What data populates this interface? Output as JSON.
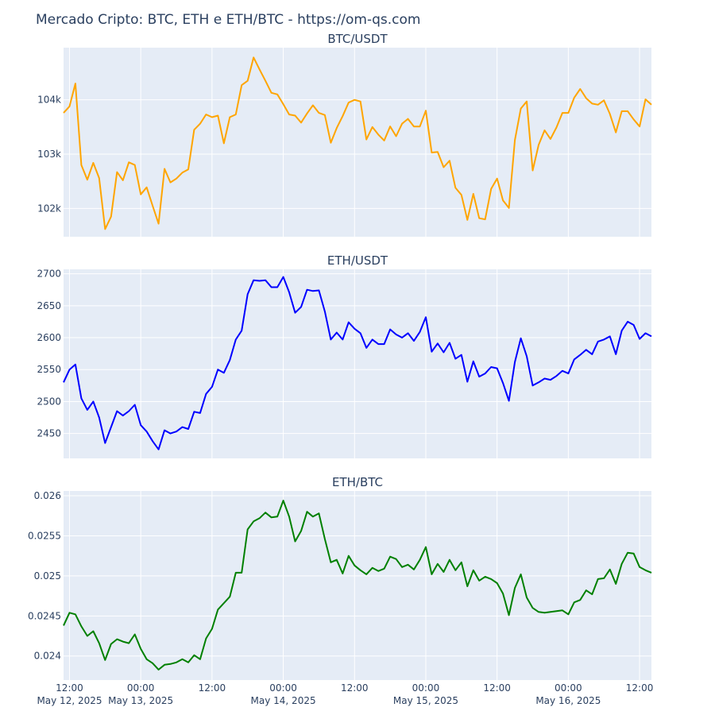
{
  "title": "Mercado Cripto: BTC, ETH e ETH/BTC - https://om-qs.com",
  "chart_data": {
    "type": "line",
    "x_start": "2025-05-12 11:00",
    "x_step_hours": 1,
    "x_ticks": [
      {
        "at": "2025-05-12 12:00",
        "label": "12:00",
        "sub": "May 12, 2025"
      },
      {
        "at": "2025-05-13 00:00",
        "label": "00:00",
        "sub": "May 13, 2025"
      },
      {
        "at": "2025-05-13 12:00",
        "label": "12:00",
        "sub": ""
      },
      {
        "at": "2025-05-14 00:00",
        "label": "00:00",
        "sub": "May 14, 2025"
      },
      {
        "at": "2025-05-14 12:00",
        "label": "12:00",
        "sub": ""
      },
      {
        "at": "2025-05-15 00:00",
        "label": "00:00",
        "sub": "May 15, 2025"
      },
      {
        "at": "2025-05-15 12:00",
        "label": "12:00",
        "sub": ""
      },
      {
        "at": "2025-05-16 00:00",
        "label": "00:00",
        "sub": "May 16, 2025"
      },
      {
        "at": "2025-05-16 12:00",
        "label": "12:00",
        "sub": ""
      }
    ],
    "xlim": [
      "2025-05-12 11:00",
      "2025-05-16 14:00"
    ],
    "grid": true,
    "panels": [
      {
        "title": "BTC/USDT",
        "color": "#ffa500",
        "ylim": [
          101480,
          104960
        ],
        "ticks": [
          {
            "v": 102000,
            "label": "102k"
          },
          {
            "v": 103000,
            "label": "103k"
          },
          {
            "v": 104000,
            "label": "104k"
          }
        ],
        "values": [
          103760,
          103880,
          104300,
          102800,
          102530,
          102840,
          102560,
          101620,
          101850,
          102670,
          102520,
          102850,
          102800,
          102260,
          102390,
          102050,
          101720,
          102730,
          102480,
          102550,
          102660,
          102720,
          103450,
          103560,
          103730,
          103680,
          103710,
          103200,
          103680,
          103730,
          104270,
          104350,
          104780,
          104560,
          104350,
          104130,
          104100,
          103920,
          103730,
          103710,
          103580,
          103750,
          103900,
          103760,
          103720,
          103210,
          103480,
          103700,
          103950,
          104000,
          103970,
          103270,
          103500,
          103360,
          103250,
          103510,
          103330,
          103560,
          103650,
          103510,
          103510,
          103800,
          103030,
          103040,
          102760,
          102880,
          102380,
          102250,
          101790,
          102270,
          101820,
          101800,
          102360,
          102550,
          102150,
          102010,
          103260,
          103840,
          103970,
          102700,
          103170,
          103440,
          103280,
          103490,
          103760,
          103760,
          104040,
          104200,
          104030,
          103930,
          103910,
          103990,
          103740,
          103400,
          103790,
          103790,
          103640,
          103510,
          104010,
          103910
        ],
        "series_name": ""
      },
      {
        "title": "ETH/USDT",
        "color": "#0000ff",
        "ylim": [
          2411,
          2707
        ],
        "ticks": [
          {
            "v": 2450,
            "label": "2450"
          },
          {
            "v": 2500,
            "label": "2500"
          },
          {
            "v": 2550,
            "label": "2550"
          },
          {
            "v": 2600,
            "label": "2600"
          },
          {
            "v": 2650,
            "label": "2650"
          },
          {
            "v": 2700,
            "label": "2700"
          }
        ],
        "values": [
          2530,
          2550,
          2558,
          2505,
          2487,
          2500,
          2475,
          2435,
          2460,
          2485,
          2478,
          2485,
          2495,
          2463,
          2453,
          2438,
          2425,
          2455,
          2450,
          2453,
          2460,
          2457,
          2484,
          2482,
          2512,
          2523,
          2550,
          2545,
          2565,
          2597,
          2611,
          2668,
          2690,
          2689,
          2690,
          2679,
          2679,
          2695,
          2671,
          2639,
          2648,
          2675,
          2673,
          2674,
          2641,
          2597,
          2608,
          2597,
          2624,
          2614,
          2607,
          2584,
          2597,
          2590,
          2590,
          2613,
          2605,
          2600,
          2607,
          2595,
          2609,
          2632,
          2578,
          2591,
          2577,
          2592,
          2567,
          2573,
          2531,
          2563,
          2539,
          2544,
          2554,
          2552,
          2529,
          2501,
          2562,
          2599,
          2571,
          2525,
          2530,
          2536,
          2534,
          2540,
          2548,
          2544,
          2566,
          2573,
          2581,
          2574,
          2594,
          2597,
          2602,
          2574,
          2611,
          2625,
          2620,
          2598,
          2607,
          2602
        ],
        "series_name": ""
      },
      {
        "title": "ETH/BTC",
        "color": "#008000",
        "ylim": [
          0.0237,
          0.02606
        ],
        "ticks": [
          {
            "v": 0.024,
            "label": "0.024"
          },
          {
            "v": 0.0245,
            "label": "0.0245"
          },
          {
            "v": 0.025,
            "label": "0.025"
          },
          {
            "v": 0.0255,
            "label": "0.0255"
          },
          {
            "v": 0.026,
            "label": "0.026"
          }
        ],
        "values": [
          0.02438,
          0.02454,
          0.02452,
          0.02437,
          0.02425,
          0.02431,
          0.02416,
          0.02395,
          0.02415,
          0.02421,
          0.02418,
          0.02416,
          0.02427,
          0.02409,
          0.02396,
          0.02391,
          0.02383,
          0.02389,
          0.0239,
          0.02392,
          0.02396,
          0.02392,
          0.02401,
          0.02396,
          0.02422,
          0.02434,
          0.02458,
          0.02466,
          0.02474,
          0.02504,
          0.02504,
          0.02558,
          0.02568,
          0.02572,
          0.02579,
          0.02573,
          0.02574,
          0.02594,
          0.02574,
          0.02543,
          0.02556,
          0.0258,
          0.02574,
          0.02578,
          0.02546,
          0.02517,
          0.0252,
          0.02503,
          0.02525,
          0.02513,
          0.02507,
          0.02502,
          0.0251,
          0.02506,
          0.02509,
          0.02524,
          0.02521,
          0.02511,
          0.02514,
          0.02508,
          0.0252,
          0.02536,
          0.02502,
          0.02515,
          0.02505,
          0.0252,
          0.02507,
          0.02517,
          0.02487,
          0.02507,
          0.02494,
          0.02499,
          0.02496,
          0.02491,
          0.02478,
          0.02451,
          0.02485,
          0.02502,
          0.02473,
          0.0246,
          0.02455,
          0.02454,
          0.02455,
          0.02456,
          0.02457,
          0.02452,
          0.02467,
          0.0247,
          0.02482,
          0.02477,
          0.02496,
          0.02497,
          0.02508,
          0.0249,
          0.02515,
          0.02529,
          0.02528,
          0.02511,
          0.02507,
          0.02504
        ],
        "series_name": ""
      }
    ]
  }
}
